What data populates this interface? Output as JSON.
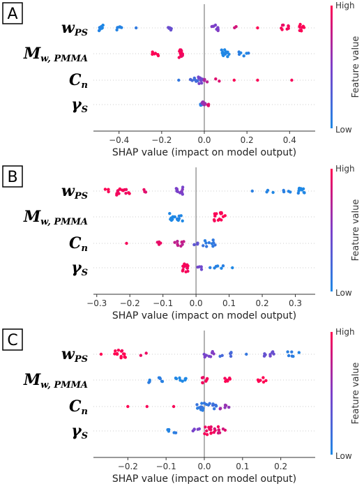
{
  "chart_data": [
    {
      "type": "scatter",
      "panel_label": "A",
      "xlabel": "SHAP value (impact on model output)",
      "xlim": [
        -0.52,
        0.52
      ],
      "xticks": [
        -0.4,
        -0.2,
        0.0,
        0.2,
        0.4
      ],
      "xtick_labels": [
        "−0.4",
        "−0.2",
        "0.0",
        "0.2",
        "0.4"
      ],
      "colorbar": {
        "high": "High",
        "low": "Low",
        "title": "Feature value",
        "colors": [
          "#1e88e5",
          "#7d3fc9",
          "#ff0051"
        ]
      },
      "features": [
        {
          "main": "w",
          "sub": "PS",
          "groups": [
            {
              "x": -0.48,
              "n": 9,
              "spread": 0.015,
              "val": 0.0
            },
            {
              "x": -0.4,
              "n": 6,
              "spread": 0.012,
              "val": 0.05
            },
            {
              "x": -0.32,
              "n": 1,
              "spread": 0.0,
              "val": 0.1
            },
            {
              "x": -0.16,
              "n": 6,
              "spread": 0.01,
              "val": 0.4
            },
            {
              "x": 0.05,
              "n": 8,
              "spread": 0.02,
              "val": 0.5
            },
            {
              "x": 0.14,
              "n": 2,
              "spread": 0.01,
              "val": 0.85
            },
            {
              "x": 0.25,
              "n": 1,
              "spread": 0.0,
              "val": 1.0
            },
            {
              "x": 0.38,
              "n": 8,
              "spread": 0.02,
              "val": 0.95
            },
            {
              "x": 0.46,
              "n": 10,
              "spread": 0.015,
              "val": 1.0
            }
          ]
        },
        {
          "main": "M",
          "sub": "w, PMMA",
          "groups": [
            {
              "x": -0.23,
              "n": 7,
              "spread": 0.015,
              "val": 1.0
            },
            {
              "x": -0.11,
              "n": 12,
              "spread": 0.01,
              "val": 0.95
            },
            {
              "x": 0.1,
              "n": 14,
              "spread": 0.02,
              "val": 0.0
            },
            {
              "x": 0.18,
              "n": 6,
              "spread": 0.03,
              "val": 0.05
            }
          ]
        },
        {
          "main": "C",
          "sub": "n",
          "groups": [
            {
              "x": -0.12,
              "n": 1,
              "spread": 0.0,
              "val": 0.1
            },
            {
              "x": -0.05,
              "n": 8,
              "spread": 0.02,
              "val": 0.2
            },
            {
              "x": -0.02,
              "n": 10,
              "spread": 0.015,
              "val": 0.45
            },
            {
              "x": 0.01,
              "n": 4,
              "spread": 0.01,
              "val": 0.7
            },
            {
              "x": 0.06,
              "n": 2,
              "spread": 0.01,
              "val": 0.85
            },
            {
              "x": 0.14,
              "n": 1,
              "spread": 0.0,
              "val": 0.95
            },
            {
              "x": 0.25,
              "n": 1,
              "spread": 0.0,
              "val": 1.0
            },
            {
              "x": 0.41,
              "n": 1,
              "spread": 0.0,
              "val": 1.0
            }
          ]
        },
        {
          "main": "γ",
          "sub": "S",
          "groups": [
            {
              "x": -0.02,
              "n": 3,
              "spread": 0.008,
              "val": 0.1
            },
            {
              "x": 0.0,
              "n": 10,
              "spread": 0.012,
              "val": 0.6
            },
            {
              "x": 0.02,
              "n": 3,
              "spread": 0.008,
              "val": 0.9
            }
          ]
        }
      ]
    },
    {
      "type": "scatter",
      "panel_label": "B",
      "xlabel": "SHAP value (impact on model output)",
      "xlim": [
        -0.31,
        0.36
      ],
      "xticks": [
        -0.3,
        -0.2,
        -0.1,
        0.0,
        0.1,
        0.2,
        0.3
      ],
      "xtick_labels": [
        "−0.3",
        "−0.2",
        "−0.1",
        "0.0",
        "0.1",
        "0.2",
        "0.3"
      ],
      "colorbar": {
        "high": "High",
        "low": "Low",
        "title": "Feature value",
        "colors": [
          "#1e88e5",
          "#7d3fc9",
          "#ff0051"
        ]
      },
      "features": [
        {
          "main": "w",
          "sub": "PS",
          "groups": [
            {
              "x": -0.27,
              "n": 4,
              "spread": 0.01,
              "val": 1.0
            },
            {
              "x": -0.22,
              "n": 14,
              "spread": 0.02,
              "val": 0.95
            },
            {
              "x": -0.15,
              "n": 3,
              "spread": 0.01,
              "val": 0.9
            },
            {
              "x": -0.05,
              "n": 12,
              "spread": 0.01,
              "val": 0.5
            },
            {
              "x": 0.17,
              "n": 1,
              "spread": 0.0,
              "val": 0.05
            },
            {
              "x": 0.22,
              "n": 3,
              "spread": 0.015,
              "val": 0.05
            },
            {
              "x": 0.27,
              "n": 4,
              "spread": 0.015,
              "val": 0.05
            },
            {
              "x": 0.32,
              "n": 10,
              "spread": 0.012,
              "val": 0.0
            }
          ]
        },
        {
          "main": "M",
          "sub": "w, PMMA",
          "groups": [
            {
              "x": -0.06,
              "n": 16,
              "spread": 0.02,
              "val": 0.0
            },
            {
              "x": 0.07,
              "n": 14,
              "spread": 0.02,
              "val": 1.0
            }
          ]
        },
        {
          "main": "C",
          "sub": "n",
          "groups": [
            {
              "x": -0.21,
              "n": 1,
              "spread": 0.0,
              "val": 1.0
            },
            {
              "x": -0.11,
              "n": 4,
              "spread": 0.01,
              "val": 0.9
            },
            {
              "x": -0.05,
              "n": 8,
              "spread": 0.015,
              "val": 0.75
            },
            {
              "x": 0.0,
              "n": 4,
              "spread": 0.008,
              "val": 0.35
            },
            {
              "x": 0.04,
              "n": 10,
              "spread": 0.02,
              "val": 0.1
            }
          ]
        },
        {
          "main": "γ",
          "sub": "S",
          "groups": [
            {
              "x": -0.03,
              "n": 14,
              "spread": 0.012,
              "val": 0.95
            },
            {
              "x": 0.01,
              "n": 4,
              "spread": 0.008,
              "val": 0.45
            },
            {
              "x": 0.06,
              "n": 6,
              "spread": 0.025,
              "val": 0.05
            },
            {
              "x": 0.11,
              "n": 1,
              "spread": 0.0,
              "val": 0.0
            }
          ]
        }
      ]
    },
    {
      "type": "scatter",
      "panel_label": "C",
      "xlabel": "SHAP value (impact on model output)",
      "xlim": [
        -0.29,
        0.29
      ],
      "xticks": [
        -0.2,
        -0.1,
        0.0,
        0.1,
        0.2
      ],
      "xtick_labels": [
        "−0.2",
        "−0.1",
        "0.0",
        "0.1",
        "0.2"
      ],
      "colorbar": {
        "high": "High",
        "low": "Low",
        "title": "Feature value",
        "colors": [
          "#1e88e5",
          "#7d3fc9",
          "#ff0051"
        ]
      },
      "features": [
        {
          "main": "w",
          "sub": "PS",
          "groups": [
            {
              "x": -0.27,
              "n": 1,
              "spread": 0.0,
              "val": 1.0
            },
            {
              "x": -0.22,
              "n": 14,
              "spread": 0.015,
              "val": 1.0
            },
            {
              "x": -0.16,
              "n": 2,
              "spread": 0.01,
              "val": 0.95
            },
            {
              "x": 0.01,
              "n": 8,
              "spread": 0.015,
              "val": 0.5
            },
            {
              "x": 0.06,
              "n": 6,
              "spread": 0.02,
              "val": 0.2
            },
            {
              "x": 0.11,
              "n": 1,
              "spread": 0.0,
              "val": 0.1
            },
            {
              "x": 0.17,
              "n": 8,
              "spread": 0.015,
              "val": 0.4
            },
            {
              "x": 0.23,
              "n": 6,
              "spread": 0.02,
              "val": 0.05
            }
          ]
        },
        {
          "main": "M",
          "sub": "w, PMMA",
          "groups": [
            {
              "x": -0.13,
              "n": 8,
              "spread": 0.025,
              "val": 0.05
            },
            {
              "x": -0.06,
              "n": 8,
              "spread": 0.015,
              "val": 0.0
            },
            {
              "x": 0.0,
              "n": 8,
              "spread": 0.008,
              "val": 0.95
            },
            {
              "x": 0.06,
              "n": 7,
              "spread": 0.008,
              "val": 1.0
            },
            {
              "x": 0.15,
              "n": 6,
              "spread": 0.012,
              "val": 1.0
            }
          ]
        },
        {
          "main": "C",
          "sub": "n",
          "groups": [
            {
              "x": -0.2,
              "n": 1,
              "spread": 0.0,
              "val": 1.0
            },
            {
              "x": -0.15,
              "n": 1,
              "spread": 0.0,
              "val": 0.95
            },
            {
              "x": -0.08,
              "n": 1,
              "spread": 0.0,
              "val": 0.95
            },
            {
              "x": -0.01,
              "n": 12,
              "spread": 0.012,
              "val": 0.1
            },
            {
              "x": 0.02,
              "n": 10,
              "spread": 0.015,
              "val": 0.15
            },
            {
              "x": 0.06,
              "n": 6,
              "spread": 0.02,
              "val": 0.6
            }
          ]
        },
        {
          "main": "γ",
          "sub": "S",
          "groups": [
            {
              "x": -0.085,
              "n": 5,
              "spread": 0.012,
              "val": 0.05
            },
            {
              "x": -0.02,
              "n": 5,
              "spread": 0.01,
              "val": 0.45
            },
            {
              "x": 0.02,
              "n": 14,
              "spread": 0.02,
              "val": 0.95
            },
            {
              "x": 0.04,
              "n": 6,
              "spread": 0.015,
              "val": 0.85
            }
          ]
        }
      ]
    }
  ]
}
